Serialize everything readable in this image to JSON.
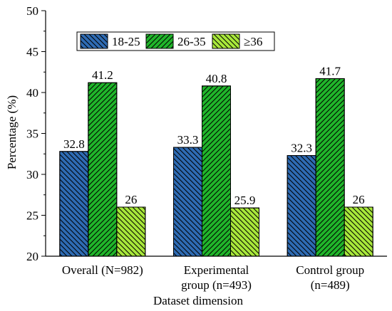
{
  "chart_data": {
    "type": "bar",
    "title": "",
    "xlabel": "Dataset dimension",
    "ylabel": "Percentage (%)",
    "ylim": [
      20,
      50
    ],
    "yticks": [
      20,
      25,
      30,
      35,
      40,
      45,
      50
    ],
    "grid": false,
    "legend_position": "top-left",
    "categories": [
      [
        "Overall (N=982)"
      ],
      [
        "Experimental",
        "group (n=493)"
      ],
      [
        "Control group",
        "(n=489)"
      ]
    ],
    "series": [
      {
        "name": "18-25",
        "values": [
          32.8,
          33.3,
          32.3
        ],
        "labels": [
          "32.8",
          "33.3",
          "32.3"
        ],
        "color": "#2e6bb3",
        "hatch": "back-diagonal"
      },
      {
        "name": "26-35",
        "values": [
          41.2,
          40.8,
          41.7
        ],
        "labels": [
          "41.2",
          "40.8",
          "41.7"
        ],
        "color": "#20b62a",
        "hatch": "diagonal"
      },
      {
        "name": "≥36",
        "values": [
          26,
          25.9,
          26
        ],
        "labels": [
          "26",
          "25.9",
          "26"
        ],
        "color": "#a8e83a",
        "hatch": "back-diagonal"
      }
    ]
  }
}
